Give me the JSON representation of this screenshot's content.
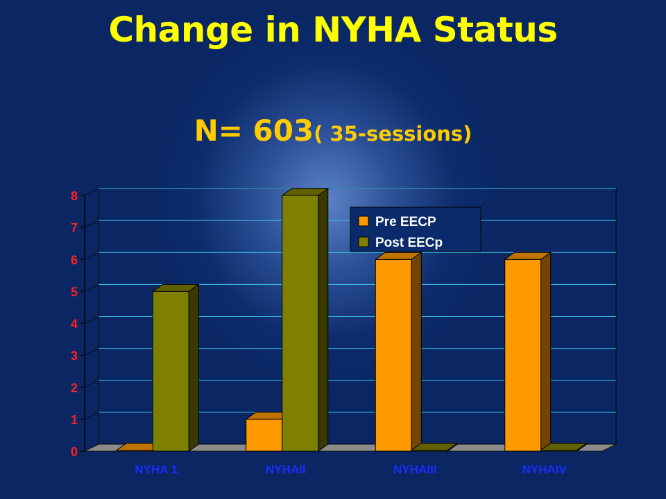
{
  "slide": {
    "title": "Change in NYHA Status",
    "subtitle_main": "N= 603",
    "subtitle_small": "( 35-sessions)"
  },
  "colors": {
    "pre": "#ff9900",
    "post": "#808000",
    "axis_tick": "#ff2020",
    "category": "#1a2dff"
  },
  "chart_data": {
    "type": "bar",
    "categories": [
      "NYHA 1",
      "NYHAII",
      "NYHAIII",
      "NYHAIV"
    ],
    "series": [
      {
        "name": "Pre EECP",
        "values": [
          0,
          1,
          6,
          6
        ]
      },
      {
        "name": "Post EECp",
        "values": [
          5,
          8,
          0,
          0
        ]
      }
    ],
    "ylim": [
      0,
      8
    ],
    "yticks": [
      0,
      1,
      2,
      3,
      4,
      5,
      6,
      7,
      8
    ],
    "grid": true,
    "legend": "top-right",
    "title": "",
    "xlabel": "",
    "ylabel": ""
  }
}
